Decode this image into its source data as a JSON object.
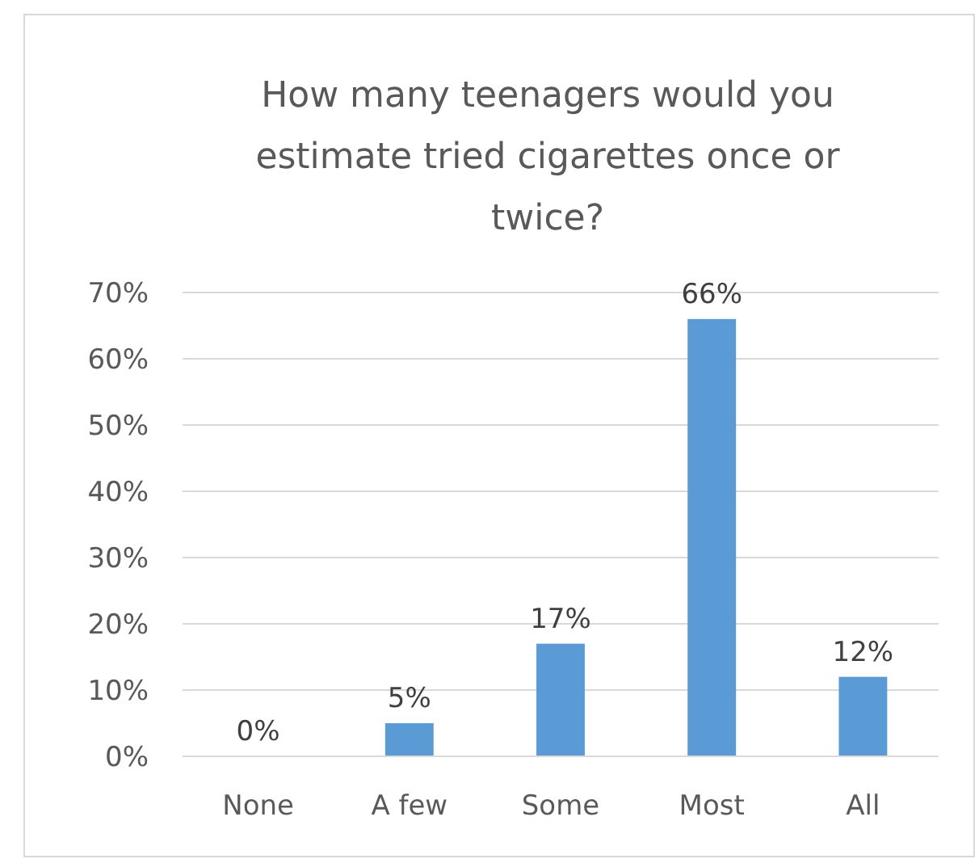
{
  "chart_data": {
    "type": "bar",
    "title": "How many teenagers would you estimate tried cigarettes once or twice?",
    "categories": [
      "None",
      "A few",
      "Some",
      "Most",
      "All"
    ],
    "values": [
      0,
      5,
      17,
      66,
      12
    ],
    "value_labels": [
      "0%",
      "5%",
      "17%",
      "66%",
      "12%"
    ],
    "color": "#5b9bd5",
    "ylim": [
      0,
      70
    ],
    "yticks": [
      {
        "value": 0,
        "label": "0%"
      },
      {
        "value": 10,
        "label": "10%"
      },
      {
        "value": 20,
        "label": "20%"
      },
      {
        "value": 30,
        "label": "30%"
      },
      {
        "value": 40,
        "label": "40%"
      },
      {
        "value": 50,
        "label": "50%"
      },
      {
        "value": 60,
        "label": "60%"
      },
      {
        "value": 70,
        "label": "70%"
      }
    ],
    "grid": "y"
  }
}
